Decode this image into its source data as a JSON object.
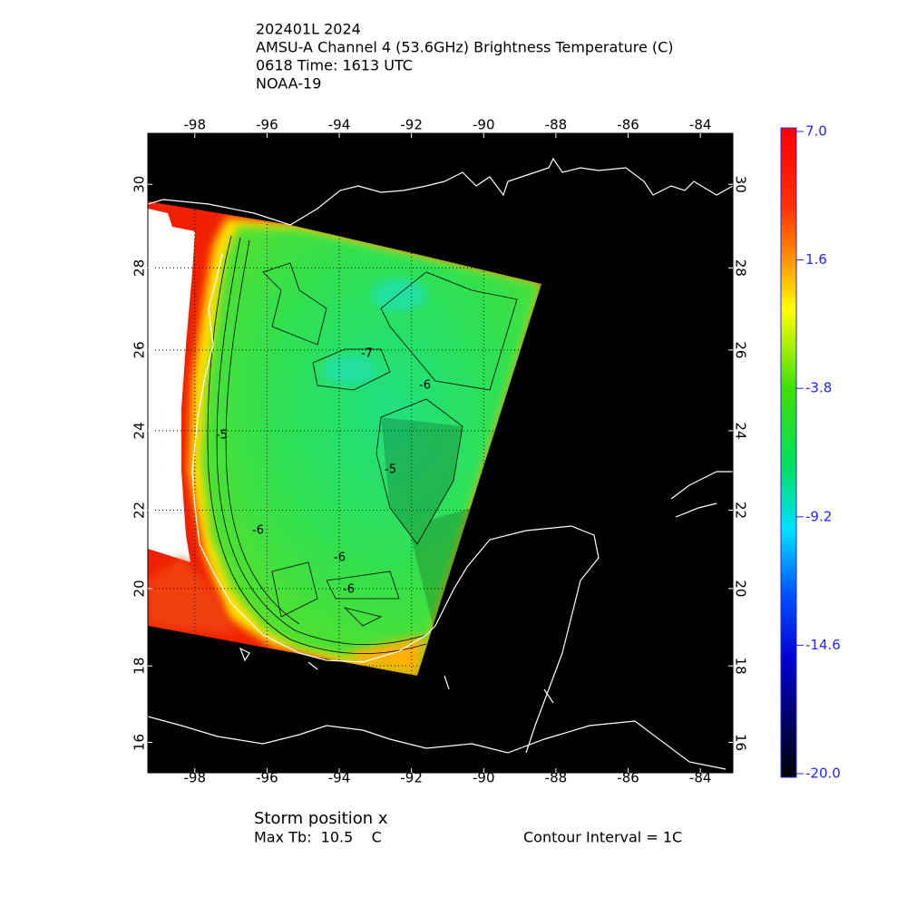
{
  "header": {
    "lines": [
      "202401L 2024",
      "AMSU-A Channel 4 (53.6GHz) Brightness Temperature (C)",
      "0618 Time: 1613 UTC",
      "NOAA-19"
    ]
  },
  "map": {
    "xlim": [
      -99.3,
      -83.1
    ],
    "ylim": [
      15.2,
      31.2
    ],
    "xticks": [
      -98,
      -96,
      -94,
      -92,
      -90,
      -88,
      -86,
      -84
    ],
    "yticks": [
      16,
      18,
      20,
      22,
      24,
      26,
      28,
      30
    ],
    "grid": true
  },
  "colorbar": {
    "lim": [
      -20,
      7
    ],
    "ticks": [
      {
        "value": 7,
        "label": "7.0"
      },
      1.6,
      -3.8,
      -9.2,
      -14.6,
      {
        "value": -20,
        "label": "-20.0"
      }
    ]
  },
  "contour_labels": [
    -7,
    -6,
    -5,
    -5,
    -6,
    -6,
    -6
  ],
  "footer": {
    "storm": "Storm position x",
    "max_tb": "Max Tb:  10.5    C",
    "interval": "Contour Interval = 1C"
  }
}
